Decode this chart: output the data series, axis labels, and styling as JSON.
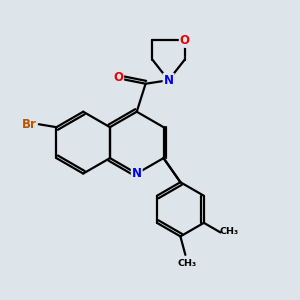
{
  "bg_color": "#dde5eb",
  "bond_color": "#000000",
  "bond_width": 1.6,
  "atom_colors": {
    "N": "#0000ee",
    "O": "#ee0000",
    "Br": "#bb5500",
    "C": "#000000"
  },
  "xlim": [
    0,
    10
  ],
  "ylim": [
    0,
    10
  ]
}
